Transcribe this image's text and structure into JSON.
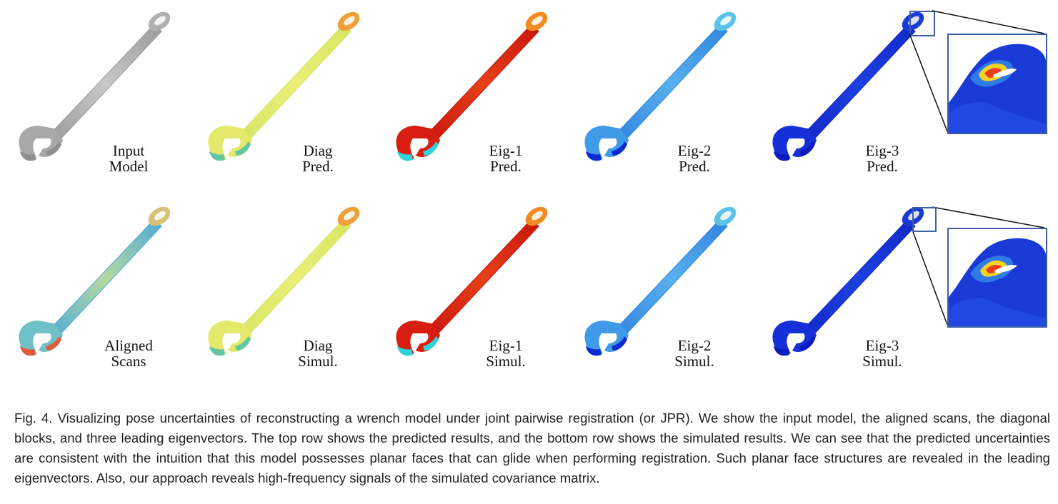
{
  "figure": {
    "row1": [
      {
        "line1": "Input",
        "line2": "Model",
        "scheme": "gray"
      },
      {
        "line1": "Diag",
        "line2": "Pred.",
        "scheme": "diag"
      },
      {
        "line1": "Eig-1",
        "line2": "Pred.",
        "scheme": "eig1"
      },
      {
        "line1": "Eig-2",
        "line2": "Pred.",
        "scheme": "eig2"
      },
      {
        "line1": "Eig-3",
        "line2": "Pred.",
        "scheme": "eig3"
      }
    ],
    "row2": [
      {
        "line1": "Aligned",
        "line2": "Scans",
        "scheme": "scans"
      },
      {
        "line1": "Diag",
        "line2": "Simul.",
        "scheme": "diag"
      },
      {
        "line1": "Eig-1",
        "line2": "Simul.",
        "scheme": "eig1"
      },
      {
        "line1": "Eig-2",
        "line2": "Simul.",
        "scheme": "eig2"
      },
      {
        "line1": "Eig-3",
        "line2": "Simul.",
        "scheme": "eig3"
      }
    ],
    "colors": {
      "gray": "#a8a8a8",
      "diag": "#e3e96a",
      "eig1": "#d81e10",
      "eig2": "#3f9ae8",
      "eig3": "#1530d8",
      "scans": "#6fc0c8",
      "frame": "#3b5fa8"
    }
  },
  "caption": {
    "text": "Fig. 4.  Visualizing pose uncertainties of reconstructing a wrench model under joint pairwise registration (or JPR). We show the input model, the aligned scans, the diagonal blocks, and three leading eigenvectors. The top row shows the predicted results, and the bottom row shows the simulated results. We can see that the predicted uncertainties are consistent with the intuition that this model possesses planar faces that can glide when performing registration. Such planar face structures are revealed in the leading eigenvectors. Also, our approach reveals high-frequency signals of the simulated covariance matrix."
  }
}
